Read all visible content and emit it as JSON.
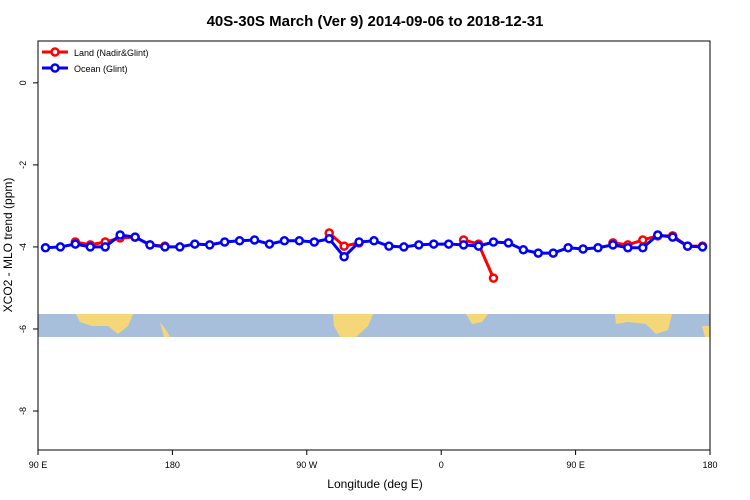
{
  "chart_data": {
    "type": "line",
    "title": "40S-30S March (Ver 9)   2014-09-06 to 2018-12-31",
    "x_label": "Longitude (deg E)",
    "y_label": "XCO2 - MLO trend (ppm)",
    "x": [
      95,
      105,
      115,
      125,
      135,
      145,
      155,
      165,
      175,
      185,
      195,
      205,
      215,
      225,
      235,
      245,
      255,
      265,
      275,
      285,
      295,
      305,
      315,
      325,
      335,
      345,
      355,
      365,
      375,
      385,
      395,
      405,
      415,
      425,
      435,
      445,
      455,
      465,
      475,
      485,
      495,
      505,
      515,
      525,
      535
    ],
    "series": [
      {
        "name": "Land (Nadir&Glint)",
        "color": "#ff0000",
        "values": [
          null,
          null,
          -3.88,
          -3.95,
          -3.88,
          -3.78,
          -3.76,
          -3.95,
          -3.98,
          null,
          null,
          null,
          null,
          null,
          null,
          null,
          null,
          null,
          null,
          -3.66,
          -3.98,
          -3.9,
          null,
          null,
          null,
          null,
          null,
          null,
          -3.83,
          -3.93,
          -4.76,
          null,
          null,
          null,
          null,
          null,
          null,
          null,
          -3.9,
          -3.95,
          -3.83,
          -3.73,
          -3.73,
          -3.98,
          -3.98
        ]
      },
      {
        "name": "Ocean (Glint)",
        "color": "#0000ff",
        "values": [
          -4.02,
          -4.0,
          -3.93,
          -4.0,
          -4.0,
          -3.71,
          -3.76,
          -3.95,
          -4.0,
          -4.0,
          -3.93,
          -3.95,
          -3.88,
          -3.85,
          -3.83,
          -3.93,
          -3.85,
          -3.85,
          -3.88,
          -3.8,
          -4.24,
          -3.88,
          -3.85,
          -3.98,
          -4.0,
          -3.95,
          -3.93,
          -3.93,
          -3.95,
          -3.98,
          -3.88,
          -3.9,
          -4.07,
          -4.15,
          -4.15,
          -4.02,
          -4.05,
          -4.02,
          -3.95,
          -4.02,
          -4.02,
          -3.71,
          -3.76,
          -3.98,
          -4.0
        ]
      }
    ],
    "xlim": [
      90,
      540
    ],
    "xticks": [
      {
        "value": 90,
        "label": "90 E"
      },
      {
        "value": 180,
        "label": "180"
      },
      {
        "value": 270,
        "label": "90 W"
      },
      {
        "value": 360,
        "label": "0"
      },
      {
        "value": 450,
        "label": "90 E"
      },
      {
        "value": 540,
        "label": "180"
      }
    ],
    "ylim": [
      -8.95,
      1.02
    ],
    "yticks": [
      0,
      -2,
      -4,
      -6,
      -8
    ],
    "legend": "top-left"
  }
}
